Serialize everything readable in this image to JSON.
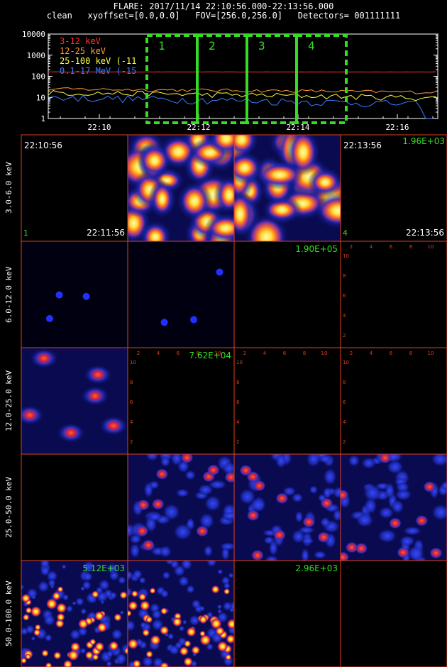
{
  "header": {
    "line1": "FLARE: 2017/11/14 22:10:56.000-22:13:56.000",
    "line2": "clean   xyoffset=[0.0,0.0]   FOV=[256.0,256.0]   Detectors= 001111111"
  },
  "chart_data": [
    {
      "type": "line",
      "yscale": "log",
      "ylim": [
        1,
        10000
      ],
      "yticks": [
        "10000",
        "1000",
        "100",
        "10",
        "1"
      ],
      "xticks": [
        "22:10",
        "22:12",
        "22:14",
        "22:16"
      ],
      "series": [
        {
          "name": "3-12 keV",
          "color": "#ff3030",
          "level": 160
        },
        {
          "name": "12-25 keV",
          "color": "#ff9a3c",
          "level": 25
        },
        {
          "name": "25-100 keV (-11",
          "color": "#ffff40",
          "level": 17
        },
        {
          "name": "0.1-17 MeV (-15",
          "color": "#3a7bff",
          "level": 10
        }
      ],
      "intervals": [
        "1",
        "2",
        "3",
        "4"
      ],
      "interval_color": "#33dd22"
    },
    {
      "type": "heatmap",
      "rows": [
        "3.0-6.0 keV",
        "6.0-12.0 keV",
        "12.0-25.0 keV",
        "25.0-50.0 keV",
        "50.0-100.0 keV"
      ],
      "annotations": {
        "time_start": "22:10:56",
        "time_mid": "22:11:56",
        "time_overlap_top": "22:13:56",
        "time_overlap_bottom": "22:13:56",
        "idx_left": "1",
        "idx_right": "4",
        "max_r0": "1.96E+03",
        "max_r1": "1.90E+05",
        "max_r2": "7.62E+04",
        "max_r4a": "5.12E+03",
        "max_r4b": "2.96E+03"
      },
      "axis_ticks": [
        "2",
        "4",
        "6",
        "8",
        "10"
      ]
    }
  ]
}
